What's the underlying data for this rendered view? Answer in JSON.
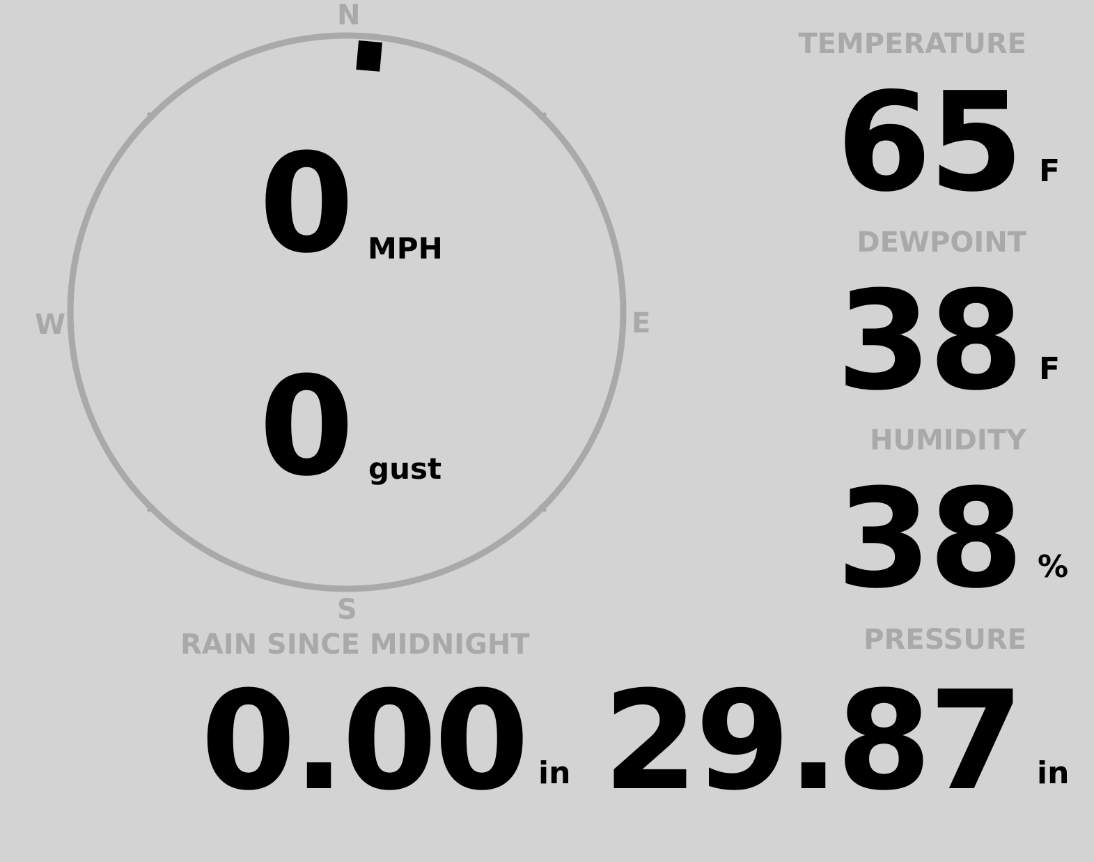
{
  "wind": {
    "speed": "0",
    "speed_unit": "MPH",
    "gust": "0",
    "gust_unit": "gust",
    "direction_degrees": 5,
    "cardinals": {
      "n": "N",
      "e": "E",
      "s": "S",
      "w": "W"
    }
  },
  "temperature": {
    "label": "TEMPERATURE",
    "value": "65",
    "unit": "F"
  },
  "dewpoint": {
    "label": "DEWPOINT",
    "value": "38",
    "unit": "F"
  },
  "humidity": {
    "label": "HUMIDITY",
    "value": "38",
    "unit": "%"
  },
  "rain": {
    "label": "RAIN SINCE MIDNIGHT",
    "value": "0.00",
    "unit": "in"
  },
  "pressure": {
    "label": "PRESSURE",
    "value": "29.87",
    "unit": "in"
  },
  "colors": {
    "background": "#d3d3d3",
    "label": "#a9a9a9",
    "value": "#000000",
    "compass_ring": "#a9a9a9"
  }
}
